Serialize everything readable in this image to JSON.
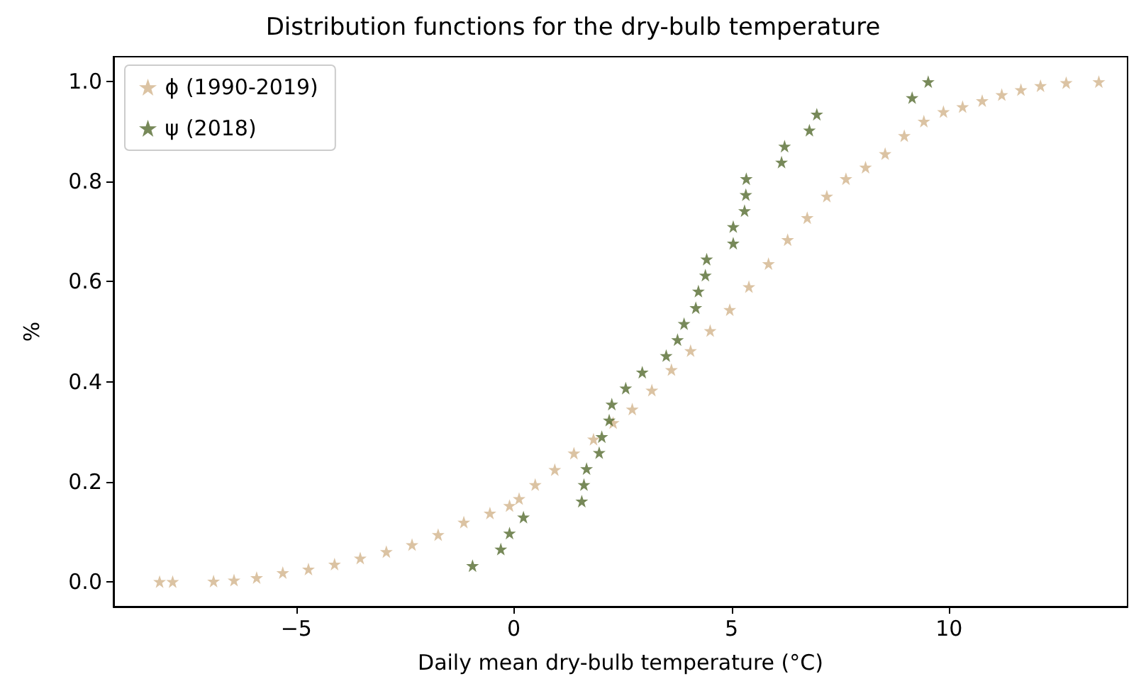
{
  "chart_data": {
    "type": "scatter",
    "title": "Distribution functions for the dry-bulb temperature",
    "xlabel": "Daily mean dry-bulb temperature (°C)",
    "ylabel": "%",
    "xlim": [
      -9.2,
      14.1
    ],
    "xticks": [
      {
        "value": -5,
        "label": "−5"
      },
      0,
      5,
      10
    ],
    "ylim": [
      -0.05,
      1.05
    ],
    "yticks": [
      {
        "value": 0,
        "label": "0.0"
      },
      0.2,
      0.4,
      0.6,
      0.8,
      {
        "value": 1,
        "label": "1.0"
      }
    ],
    "grid": false,
    "legend": "top left",
    "marker": "star",
    "series": [
      {
        "name": "ϕ (1990-2019)",
        "color": "#d2b48c",
        "x": [
          -8.14,
          -7.84,
          -6.9,
          -6.43,
          -5.91,
          -5.31,
          -4.72,
          -4.12,
          -3.53,
          -2.93,
          -2.34,
          -1.74,
          -1.15,
          -0.55,
          -0.1,
          0.12,
          0.49,
          0.94,
          1.38,
          1.83,
          2.28,
          2.72,
          3.17,
          3.62,
          4.06,
          4.51,
          4.96,
          5.4,
          5.85,
          6.29,
          6.74,
          7.19,
          7.63,
          8.08,
          8.53,
          8.97,
          9.42,
          9.87,
          10.31,
          10.76,
          11.21,
          11.65,
          12.1,
          12.69,
          13.44
        ],
        "values": [
          0.0,
          0.0,
          0.001,
          0.003,
          0.008,
          0.018,
          0.025,
          0.035,
          0.047,
          0.06,
          0.074,
          0.094,
          0.119,
          0.137,
          0.152,
          0.166,
          0.194,
          0.224,
          0.257,
          0.285,
          0.318,
          0.345,
          0.383,
          0.424,
          0.462,
          0.502,
          0.544,
          0.59,
          0.636,
          0.684,
          0.728,
          0.771,
          0.806,
          0.829,
          0.856,
          0.892,
          0.921,
          0.94,
          0.95,
          0.962,
          0.974,
          0.984,
          0.992,
          0.998,
          1.0
        ]
      },
      {
        "name": "ψ (2018)",
        "color": "#556b2f",
        "x": [
          -0.95,
          -0.3,
          -0.1,
          0.22,
          1.56,
          1.61,
          1.67,
          1.96,
          2.02,
          2.19,
          2.25,
          2.57,
          2.95,
          3.5,
          3.76,
          3.91,
          4.18,
          4.24,
          4.4,
          4.43,
          5.04,
          5.04,
          5.3,
          5.33,
          5.34,
          6.15,
          6.22,
          6.79,
          6.96,
          9.15,
          9.52
        ],
        "values": [
          0.032,
          0.065,
          0.097,
          0.129,
          0.161,
          0.194,
          0.226,
          0.258,
          0.29,
          0.323,
          0.355,
          0.387,
          0.419,
          0.452,
          0.484,
          0.516,
          0.548,
          0.581,
          0.613,
          0.645,
          0.677,
          0.71,
          0.742,
          0.774,
          0.806,
          0.839,
          0.871,
          0.903,
          0.935,
          0.968,
          1.0
        ]
      }
    ]
  }
}
